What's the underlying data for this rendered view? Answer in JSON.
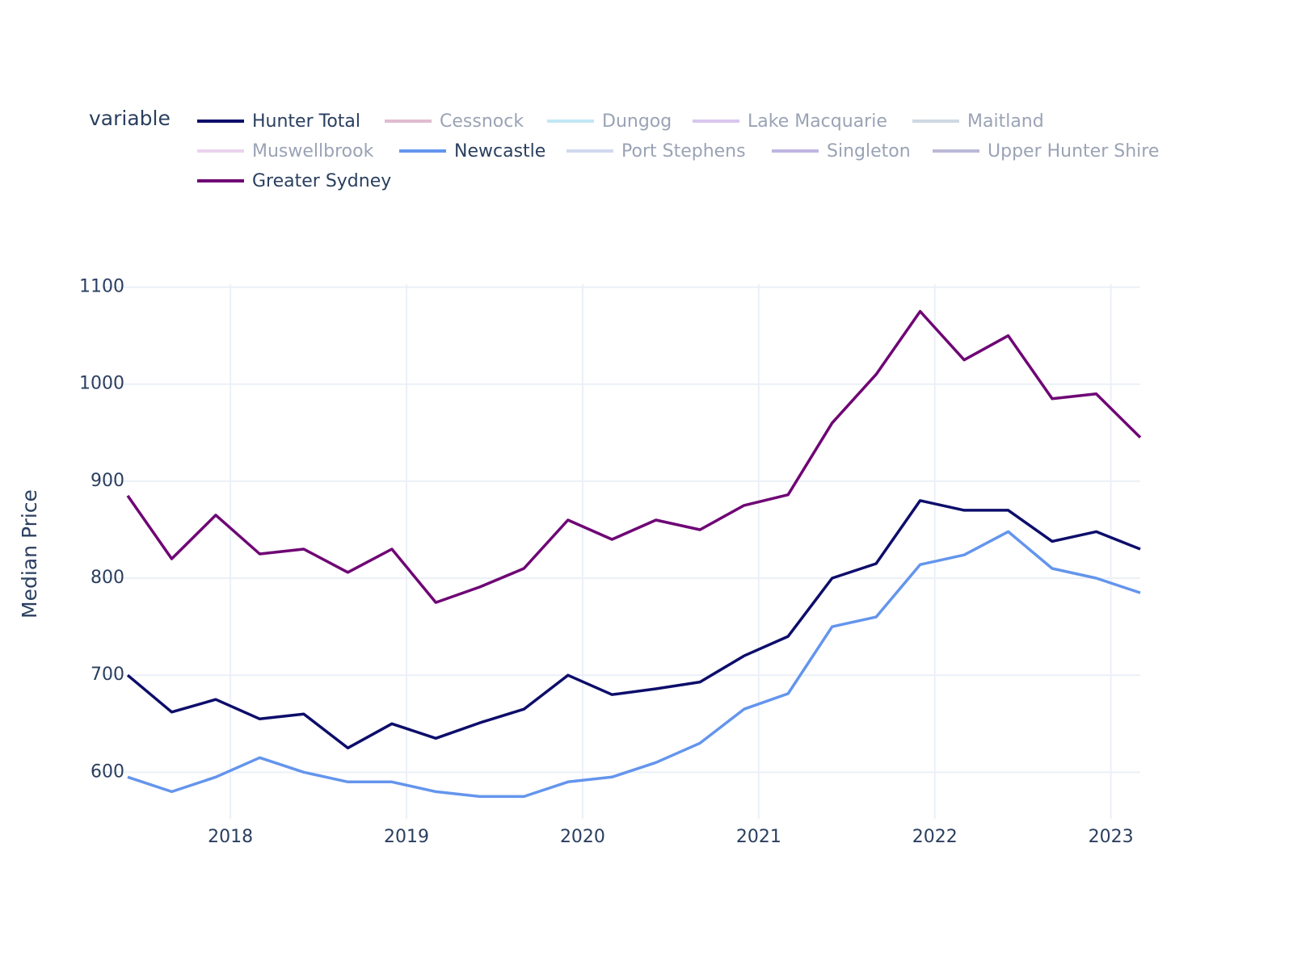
{
  "chart_data": {
    "type": "line",
    "legend_title": "variable",
    "y_label": "Median Price",
    "x": [
      "2017-06",
      "2017-09",
      "2017-12",
      "2018-03",
      "2018-06",
      "2018-09",
      "2018-12",
      "2019-03",
      "2019-06",
      "2019-09",
      "2019-12",
      "2020-03",
      "2020-06",
      "2020-09",
      "2020-12",
      "2021-03",
      "2021-06",
      "2021-09",
      "2021-12",
      "2022-03",
      "2022-06",
      "2022-09",
      "2022-12",
      "2023-03"
    ],
    "series": [
      {
        "name": "Hunter Total",
        "color": "#0d0d6b",
        "values": [
          700,
          662,
          675,
          655,
          660,
          625,
          650,
          635,
          651,
          665,
          700,
          680,
          686,
          693,
          720,
          740,
          800,
          815,
          880,
          870,
          870,
          838,
          848,
          830
        ]
      },
      {
        "name": "Cessnock",
        "color": "#c27ba0",
        "visible": "legendonly"
      },
      {
        "name": "Dungog",
        "color": "#87ceeb",
        "visible": "legendonly"
      },
      {
        "name": "Lake Macquarie",
        "color": "#b48ee0",
        "visible": "legendonly"
      },
      {
        "name": "Maitland",
        "color": "#9fb3c8",
        "visible": "legendonly"
      },
      {
        "name": "Muswellbrook",
        "color": "#d8a8e0",
        "visible": "legendonly"
      },
      {
        "name": "Newcastle",
        "color": "#6495ed",
        "values": [
          595,
          580,
          595,
          615,
          600,
          590,
          590,
          580,
          575,
          575,
          590,
          595,
          610,
          630,
          665,
          681,
          750,
          760,
          814,
          824,
          848,
          810,
          800,
          785
        ]
      },
      {
        "name": "Port Stephens",
        "color": "#a3b5e0",
        "visible": "legendonly"
      },
      {
        "name": "Singleton",
        "color": "#8070c8",
        "visible": "legendonly"
      },
      {
        "name": "Upper Hunter Shire",
        "color": "#7a73b0",
        "visible": "legendonly"
      },
      {
        "name": "Greater Sydney",
        "color": "#6f0575",
        "values": [
          885,
          820,
          865,
          825,
          830,
          806,
          830,
          775,
          791,
          810,
          860,
          840,
          860,
          850,
          875,
          886,
          960,
          1010,
          1075,
          1025,
          1050,
          985,
          990,
          945
        ]
      }
    ],
    "xlim": [
      "2017-06",
      "2023-03"
    ],
    "xticks": [
      2018,
      2019,
      2020,
      2021,
      2022,
      2023
    ],
    "ylim": [
      552,
      1103
    ],
    "yticks": [
      600,
      700,
      800,
      900,
      1000,
      1100
    ],
    "grid": true
  }
}
